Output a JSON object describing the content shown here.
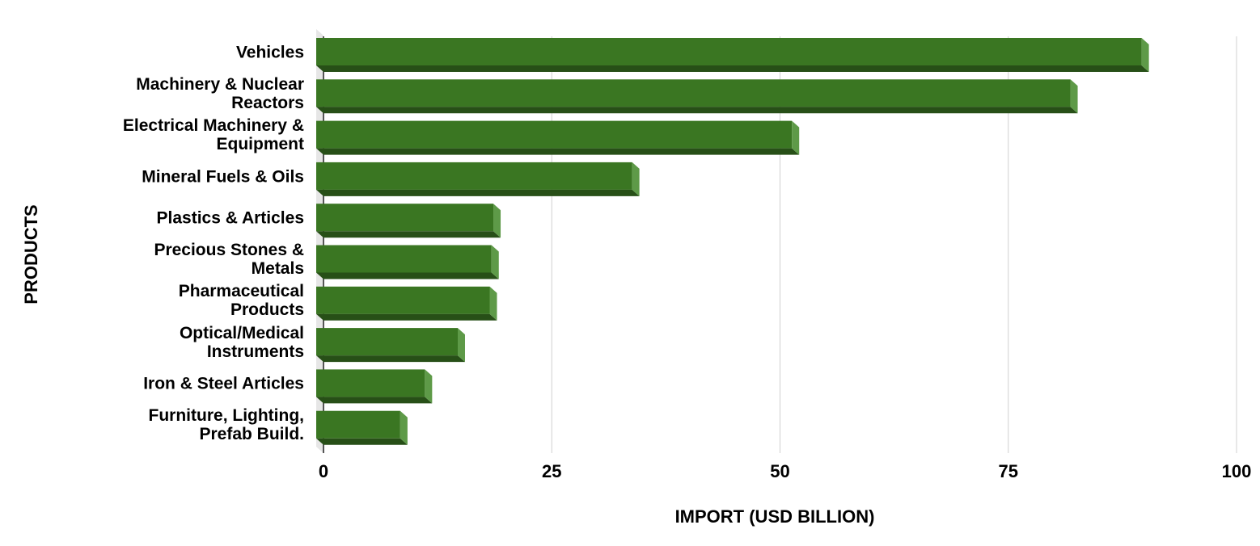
{
  "chart_data": {
    "type": "bar",
    "orientation": "horizontal",
    "x_label": "IMPORT (USD BILLION)",
    "y_label": "PRODUCTS",
    "categories": [
      "Vehicles",
      "Machinery & Nuclear\nReactors",
      "Electrical Machinery &\nEquipment",
      "Mineral Fuels & Oils",
      "Plastics & Articles",
      "Precious Stones &\nMetals",
      "Pharmaceutical\nProducts",
      "Optical/Medical\nInstruments",
      "Iron & Steel Articles",
      "Furniture, Lighting,\nPrefab Build."
    ],
    "values": [
      90.4,
      82.6,
      52.1,
      34.6,
      19.4,
      19.2,
      19.0,
      15.5,
      11.9,
      9.2
    ],
    "color": "#3a7622",
    "xlim": [
      0,
      100
    ],
    "xticks": [
      0,
      25,
      50,
      75,
      100
    ],
    "grid": true
  }
}
